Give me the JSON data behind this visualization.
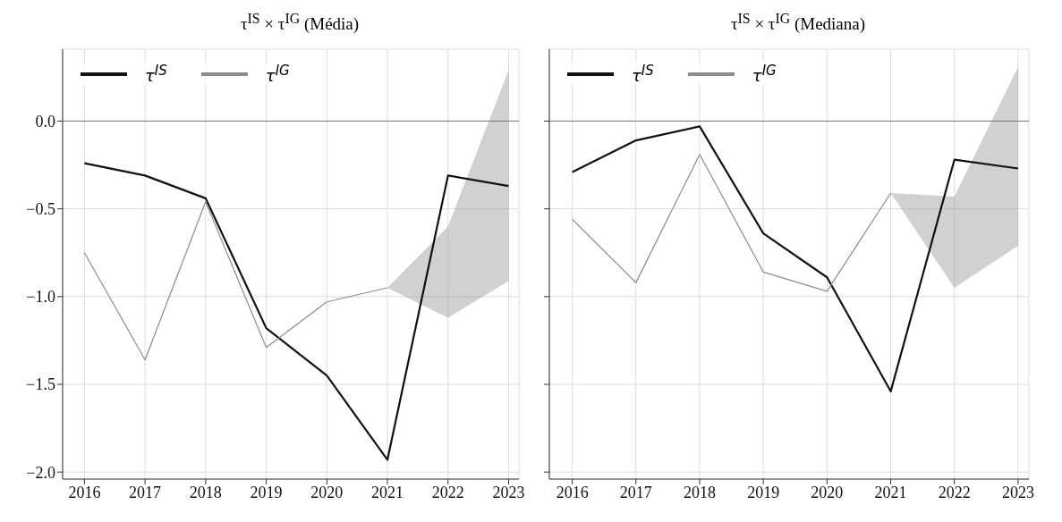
{
  "chart_data": [
    {
      "type": "line",
      "title": "τ$^{IS}$ × τ$^{IG}$ (Média)",
      "x": [
        2016,
        2017,
        2018,
        2019,
        2020,
        2021,
        2022,
        2023
      ],
      "xlim": [
        2015.64,
        2023.17
      ],
      "xticks": [
        2016,
        2017,
        2018,
        2019,
        2020,
        2021,
        2022,
        2023
      ],
      "ylim": [
        -2.04,
        0.41
      ],
      "yticks": [
        {
          "value": -2.0,
          "label": "−2.0"
        },
        {
          "value": -1.5,
          "label": "−1.5"
        },
        {
          "value": -1.0,
          "label": "−1.0"
        },
        {
          "value": -0.5,
          "label": "−0.5"
        },
        {
          "value": 0.0,
          "label": "0.0"
        }
      ],
      "grid": true,
      "legend": "top left",
      "ref_lines": [
        {
          "axis": "y",
          "value": 0,
          "color": "#777777"
        }
      ],
      "series": [
        {
          "name": "τ$^{IS}$",
          "color": "#111111",
          "values": [
            -0.24,
            -0.31,
            -0.44,
            -1.18,
            -1.45,
            -1.93,
            -0.31,
            -0.37
          ]
        },
        {
          "name": "τ$^{IG}$",
          "color": "#8c8c8c",
          "values": [
            -0.75,
            -1.36,
            -0.46,
            -1.29,
            -1.03,
            -0.95,
            null,
            null
          ],
          "lower": [
            null,
            null,
            null,
            null,
            null,
            -0.95,
            -1.12,
            -0.91
          ],
          "upper": [
            null,
            null,
            null,
            null,
            null,
            -0.95,
            -0.6,
            0.29
          ]
        }
      ]
    },
    {
      "type": "line",
      "title": "τ$^{IS}$ × τ$^{IG}$ (Mediana)",
      "x": [
        2016,
        2017,
        2018,
        2019,
        2020,
        2021,
        2022,
        2023
      ],
      "xlim": [
        2015.64,
        2023.17
      ],
      "xticks": [
        2016,
        2017,
        2018,
        2019,
        2020,
        2021,
        2022,
        2023
      ],
      "ylim": [
        -2.04,
        0.41
      ],
      "yticks": [
        {
          "value": -2.0,
          "label": null
        },
        {
          "value": -1.5,
          "label": null
        },
        {
          "value": -1.0,
          "label": null
        },
        {
          "value": -0.5,
          "label": null
        },
        {
          "value": 0.0,
          "label": null
        }
      ],
      "tick_labels": "x",
      "grid": true,
      "legend": "top left",
      "ref_lines": [
        {
          "axis": "y",
          "value": 0,
          "color": "#777777"
        }
      ],
      "series": [
        {
          "name": "τ$^{IS}$",
          "color": "#111111",
          "values": [
            -0.29,
            -0.11,
            -0.03,
            -0.64,
            -0.89,
            -1.54,
            -0.22,
            -0.27
          ]
        },
        {
          "name": "τ$^{IG}$",
          "color": "#8c8c8c",
          "values": [
            -0.56,
            -0.92,
            -0.19,
            -0.86,
            -0.97,
            -0.41,
            null,
            null
          ],
          "lower": [
            null,
            null,
            null,
            null,
            null,
            -0.41,
            -0.95,
            -0.71
          ],
          "upper": [
            null,
            null,
            null,
            null,
            null,
            -0.41,
            -0.43,
            0.31
          ]
        }
      ]
    }
  ]
}
